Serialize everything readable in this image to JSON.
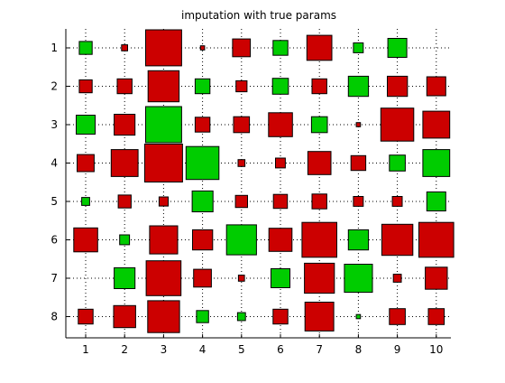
{
  "chart_data": {
    "type": "heatmap",
    "title": "imputation with true params",
    "xlabel": "",
    "ylabel": "",
    "x_categories": [
      "1",
      "2",
      "3",
      "4",
      "5",
      "6",
      "7",
      "8",
      "9",
      "10"
    ],
    "y_categories": [
      "1",
      "2",
      "3",
      "4",
      "5",
      "6",
      "7",
      "8"
    ],
    "grid": true,
    "grid_style": "dotted",
    "y_direction": "top-to-bottom",
    "encoding": "square area = magnitude, color = sign",
    "colors": {
      "positive": "#00cc00",
      "negative": "#cc0000",
      "edge": "#000000",
      "grid": "#000000"
    },
    "cells": [
      {
        "row": 1,
        "col": 1,
        "sign": "positive",
        "size": 0.34
      },
      {
        "row": 1,
        "col": 2,
        "sign": "negative",
        "size": 0.16
      },
      {
        "row": 1,
        "col": 3,
        "sign": "negative",
        "size": 0.95
      },
      {
        "row": 1,
        "col": 4,
        "sign": "negative",
        "size": 0.11
      },
      {
        "row": 1,
        "col": 5,
        "sign": "negative",
        "size": 0.47
      },
      {
        "row": 1,
        "col": 6,
        "sign": "positive",
        "size": 0.39
      },
      {
        "row": 1,
        "col": 7,
        "sign": "negative",
        "size": 0.66
      },
      {
        "row": 1,
        "col": 8,
        "sign": "positive",
        "size": 0.26
      },
      {
        "row": 1,
        "col": 9,
        "sign": "positive",
        "size": 0.5
      },
      {
        "row": 2,
        "col": 1,
        "sign": "negative",
        "size": 0.34
      },
      {
        "row": 2,
        "col": 2,
        "sign": "negative",
        "size": 0.39
      },
      {
        "row": 2,
        "col": 3,
        "sign": "negative",
        "size": 0.82
      },
      {
        "row": 2,
        "col": 4,
        "sign": "positive",
        "size": 0.39
      },
      {
        "row": 2,
        "col": 5,
        "sign": "negative",
        "size": 0.29
      },
      {
        "row": 2,
        "col": 6,
        "sign": "positive",
        "size": 0.42
      },
      {
        "row": 2,
        "col": 7,
        "sign": "negative",
        "size": 0.39
      },
      {
        "row": 2,
        "col": 8,
        "sign": "positive",
        "size": 0.53
      },
      {
        "row": 2,
        "col": 9,
        "sign": "negative",
        "size": 0.53
      },
      {
        "row": 2,
        "col": 10,
        "sign": "negative",
        "size": 0.5
      },
      {
        "row": 3,
        "col": 1,
        "sign": "positive",
        "size": 0.5
      },
      {
        "row": 3,
        "col": 2,
        "sign": "negative",
        "size": 0.55
      },
      {
        "row": 3,
        "col": 3,
        "sign": "positive",
        "size": 0.95
      },
      {
        "row": 3,
        "col": 4,
        "sign": "negative",
        "size": 0.39
      },
      {
        "row": 3,
        "col": 5,
        "sign": "negative",
        "size": 0.42
      },
      {
        "row": 3,
        "col": 6,
        "sign": "negative",
        "size": 0.63
      },
      {
        "row": 3,
        "col": 7,
        "sign": "positive",
        "size": 0.42
      },
      {
        "row": 3,
        "col": 8,
        "sign": "negative",
        "size": 0.11
      },
      {
        "row": 3,
        "col": 9,
        "sign": "negative",
        "size": 0.87
      },
      {
        "row": 3,
        "col": 10,
        "sign": "negative",
        "size": 0.71
      },
      {
        "row": 4,
        "col": 1,
        "sign": "negative",
        "size": 0.45
      },
      {
        "row": 4,
        "col": 2,
        "sign": "negative",
        "size": 0.71
      },
      {
        "row": 4,
        "col": 3,
        "sign": "negative",
        "size": 1.0
      },
      {
        "row": 4,
        "col": 4,
        "sign": "positive",
        "size": 0.87
      },
      {
        "row": 4,
        "col": 5,
        "sign": "negative",
        "size": 0.18
      },
      {
        "row": 4,
        "col": 6,
        "sign": "negative",
        "size": 0.26
      },
      {
        "row": 4,
        "col": 7,
        "sign": "negative",
        "size": 0.61
      },
      {
        "row": 4,
        "col": 8,
        "sign": "negative",
        "size": 0.39
      },
      {
        "row": 4,
        "col": 9,
        "sign": "positive",
        "size": 0.42
      },
      {
        "row": 4,
        "col": 10,
        "sign": "positive",
        "size": 0.71
      },
      {
        "row": 5,
        "col": 1,
        "sign": "positive",
        "size": 0.21
      },
      {
        "row": 5,
        "col": 2,
        "sign": "negative",
        "size": 0.34
      },
      {
        "row": 5,
        "col": 3,
        "sign": "negative",
        "size": 0.24
      },
      {
        "row": 5,
        "col": 4,
        "sign": "positive",
        "size": 0.55
      },
      {
        "row": 5,
        "col": 5,
        "sign": "negative",
        "size": 0.32
      },
      {
        "row": 5,
        "col": 6,
        "sign": "negative",
        "size": 0.37
      },
      {
        "row": 5,
        "col": 7,
        "sign": "negative",
        "size": 0.39
      },
      {
        "row": 5,
        "col": 8,
        "sign": "negative",
        "size": 0.26
      },
      {
        "row": 5,
        "col": 9,
        "sign": "negative",
        "size": 0.26
      },
      {
        "row": 5,
        "col": 10,
        "sign": "positive",
        "size": 0.5
      },
      {
        "row": 6,
        "col": 1,
        "sign": "negative",
        "size": 0.63
      },
      {
        "row": 6,
        "col": 2,
        "sign": "positive",
        "size": 0.26
      },
      {
        "row": 6,
        "col": 3,
        "sign": "negative",
        "size": 0.74
      },
      {
        "row": 6,
        "col": 4,
        "sign": "negative",
        "size": 0.53
      },
      {
        "row": 6,
        "col": 5,
        "sign": "positive",
        "size": 0.79
      },
      {
        "row": 6,
        "col": 6,
        "sign": "negative",
        "size": 0.61
      },
      {
        "row": 6,
        "col": 7,
        "sign": "negative",
        "size": 0.92
      },
      {
        "row": 6,
        "col": 8,
        "sign": "positive",
        "size": 0.53
      },
      {
        "row": 6,
        "col": 9,
        "sign": "negative",
        "size": 0.82
      },
      {
        "row": 6,
        "col": 10,
        "sign": "negative",
        "size": 0.92
      },
      {
        "row": 7,
        "col": 2,
        "sign": "positive",
        "size": 0.55
      },
      {
        "row": 7,
        "col": 3,
        "sign": "negative",
        "size": 0.92
      },
      {
        "row": 7,
        "col": 4,
        "sign": "negative",
        "size": 0.47
      },
      {
        "row": 7,
        "col": 5,
        "sign": "negative",
        "size": 0.16
      },
      {
        "row": 7,
        "col": 6,
        "sign": "positive",
        "size": 0.5
      },
      {
        "row": 7,
        "col": 7,
        "sign": "negative",
        "size": 0.79
      },
      {
        "row": 7,
        "col": 8,
        "sign": "positive",
        "size": 0.74
      },
      {
        "row": 7,
        "col": 9,
        "sign": "negative",
        "size": 0.21
      },
      {
        "row": 7,
        "col": 10,
        "sign": "negative",
        "size": 0.58
      },
      {
        "row": 8,
        "col": 1,
        "sign": "negative",
        "size": 0.39
      },
      {
        "row": 8,
        "col": 2,
        "sign": "negative",
        "size": 0.58
      },
      {
        "row": 8,
        "col": 3,
        "sign": "negative",
        "size": 0.84
      },
      {
        "row": 8,
        "col": 4,
        "sign": "positive",
        "size": 0.32
      },
      {
        "row": 8,
        "col": 5,
        "sign": "positive",
        "size": 0.21
      },
      {
        "row": 8,
        "col": 6,
        "sign": "negative",
        "size": 0.39
      },
      {
        "row": 8,
        "col": 7,
        "sign": "negative",
        "size": 0.76
      },
      {
        "row": 8,
        "col": 8,
        "sign": "positive",
        "size": 0.11
      },
      {
        "row": 8,
        "col": 9,
        "sign": "negative",
        "size": 0.42
      },
      {
        "row": 8,
        "col": 10,
        "sign": "negative",
        "size": 0.42
      }
    ]
  }
}
